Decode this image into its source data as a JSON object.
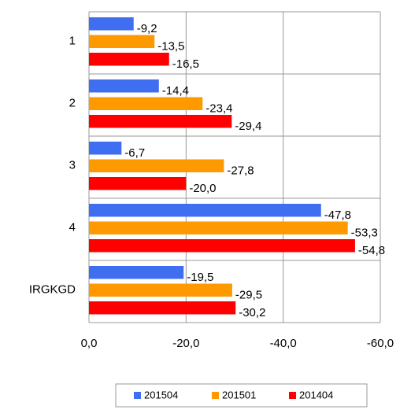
{
  "chart_data": {
    "type": "hbar",
    "categories": [
      "1",
      "2",
      "3",
      "4",
      "IRGKGD"
    ],
    "series": [
      {
        "name": "201504",
        "color": "#3f6ef0",
        "values": [
          -9.2,
          -14.4,
          -6.7,
          -47.8,
          -19.5
        ],
        "value_labels": [
          "-9,2",
          "-14,4",
          "-6,7",
          "-47,8",
          "-19,5"
        ]
      },
      {
        "name": "201501",
        "color": "#ff9900",
        "values": [
          -13.5,
          -23.4,
          -27.8,
          -53.3,
          -29.5
        ],
        "value_labels": [
          "-13,5",
          "-23,4",
          "-27,8",
          "-53,3",
          "-29,5"
        ]
      },
      {
        "name": "201404",
        "color": "#ff0000",
        "values": [
          -16.5,
          -29.4,
          -20.0,
          -54.8,
          -30.2
        ],
        "value_labels": [
          "-16,5",
          "-29,4",
          "-20,0",
          "-54,8",
          "-30,2"
        ]
      }
    ],
    "xlim": [
      0,
      -60
    ],
    "xticks": [
      {
        "value": 0,
        "label": "0,0"
      },
      {
        "value": -20,
        "label": "-20,0"
      },
      {
        "value": -40,
        "label": "-40,0"
      },
      {
        "value": -60,
        "label": "-60,0"
      }
    ],
    "grid": true,
    "legend": "bottom"
  }
}
